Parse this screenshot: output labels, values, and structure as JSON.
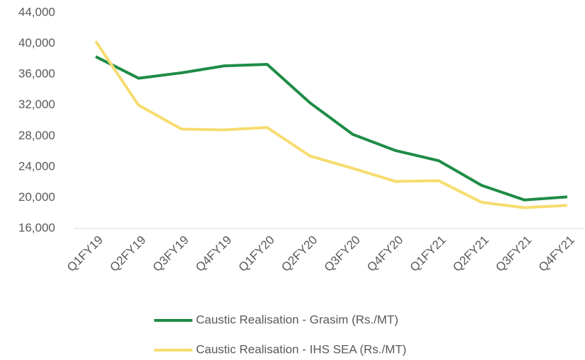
{
  "chart_data": {
    "type": "line",
    "categories": [
      "Q1FY19",
      "Q2FY19",
      "Q3FY19",
      "Q4FY19",
      "Q1FY20",
      "Q2FY20",
      "Q3FY20",
      "Q4FY20",
      "Q1FY21",
      "Q2FY21",
      "Q3FY21",
      "Q4FY21"
    ],
    "series": [
      {
        "name": "Caustic Realisation - Grasim (Rs./MT)",
        "color": "#1e8c45",
        "values": [
          38300,
          35500,
          36200,
          37100,
          37300,
          32300,
          28200,
          26100,
          24800,
          21600,
          19700,
          20100
        ]
      },
      {
        "name": "Caustic Realisation - IHS SEA (Rs./MT)",
        "color": "#f7dc6f",
        "values": [
          40300,
          32000,
          28900,
          28800,
          29100,
          25400,
          23800,
          22100,
          22200,
          19400,
          18700,
          19000
        ]
      }
    ],
    "ylim": [
      16000,
      44000
    ],
    "yticks": [
      {
        "value": 16000,
        "label": "16,000"
      },
      {
        "value": 20000,
        "label": "20,000"
      },
      {
        "value": 24000,
        "label": "24,000"
      },
      {
        "value": 28000,
        "label": "28,000"
      },
      {
        "value": 32000,
        "label": "32,000"
      },
      {
        "value": 36000,
        "label": "36,000"
      },
      {
        "value": 40000,
        "label": "40,000"
      },
      {
        "value": 44000,
        "label": "44,000"
      }
    ],
    "grid": false,
    "legend": "bottom"
  }
}
